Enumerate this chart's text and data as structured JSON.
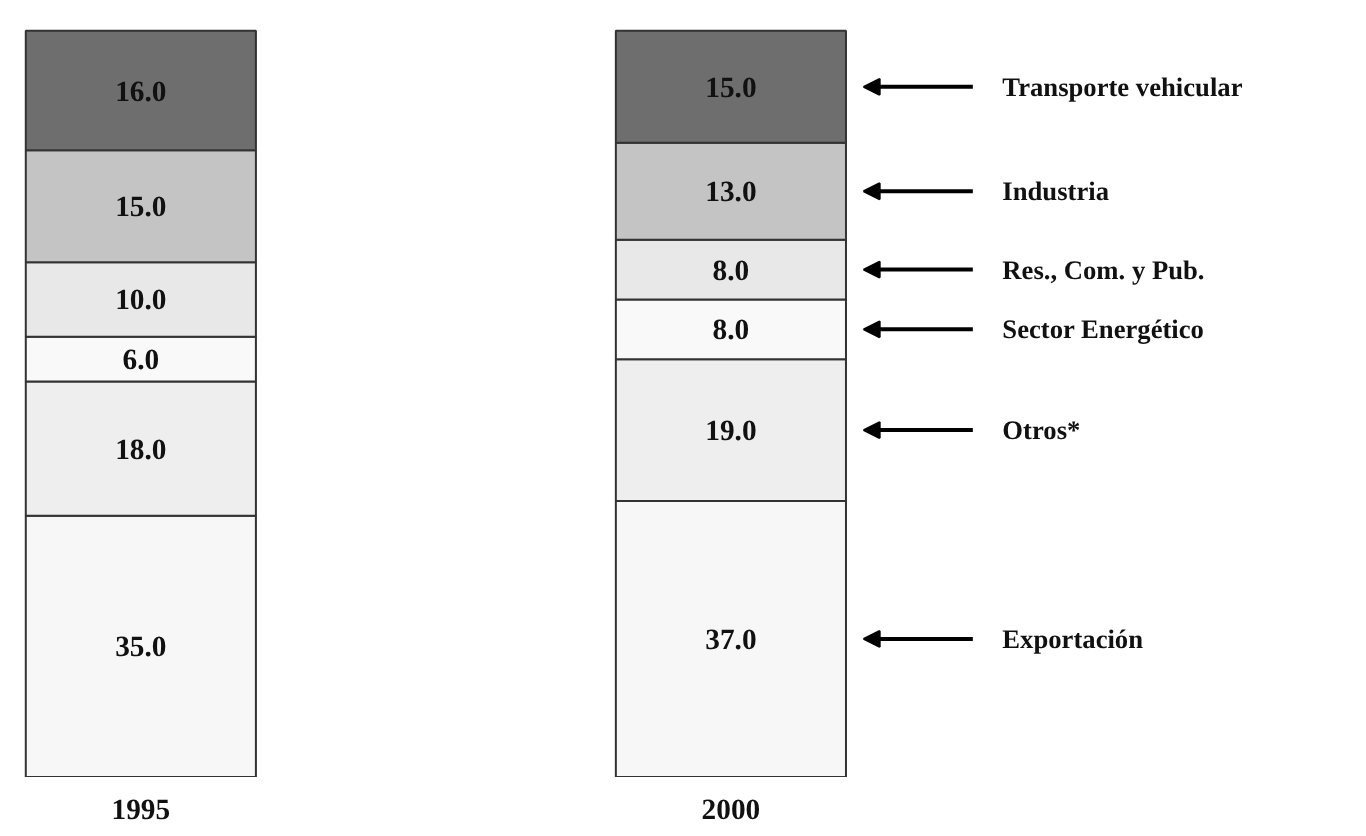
{
  "chart_data": {
    "type": "bar",
    "stacked": true,
    "categories": [
      "1995",
      "2000"
    ],
    "series": [
      {
        "name": "Exportación",
        "color": "#f7f7f7",
        "values": [
          35.0,
          37.0
        ],
        "value_labels": [
          "35.0",
          "37.0"
        ]
      },
      {
        "name": "Otros*",
        "color": "#eeeeee",
        "values": [
          18.0,
          19.0
        ],
        "value_labels": [
          "18.0",
          "19.0"
        ]
      },
      {
        "name": "Sector Energético",
        "color": "#f9f9f9",
        "values": [
          6.0,
          8.0
        ],
        "value_labels": [
          "6.0",
          "8.0"
        ]
      },
      {
        "name": "Res., Com. y Pub.",
        "color": "#e8e8e8",
        "values": [
          10.0,
          8.0
        ],
        "value_labels": [
          "10.0",
          "8.0"
        ]
      },
      {
        "name": "Industria",
        "color": "#c4c4c4",
        "values": [
          15.0,
          13.0
        ],
        "value_labels": [
          "15.0",
          "13.0"
        ]
      },
      {
        "name": "Transporte vehicular",
        "color": "#6e6e6e",
        "values": [
          16.0,
          15.0
        ],
        "value_labels": [
          "16.0",
          "15.0"
        ]
      }
    ],
    "tick_labels": "x"
  }
}
